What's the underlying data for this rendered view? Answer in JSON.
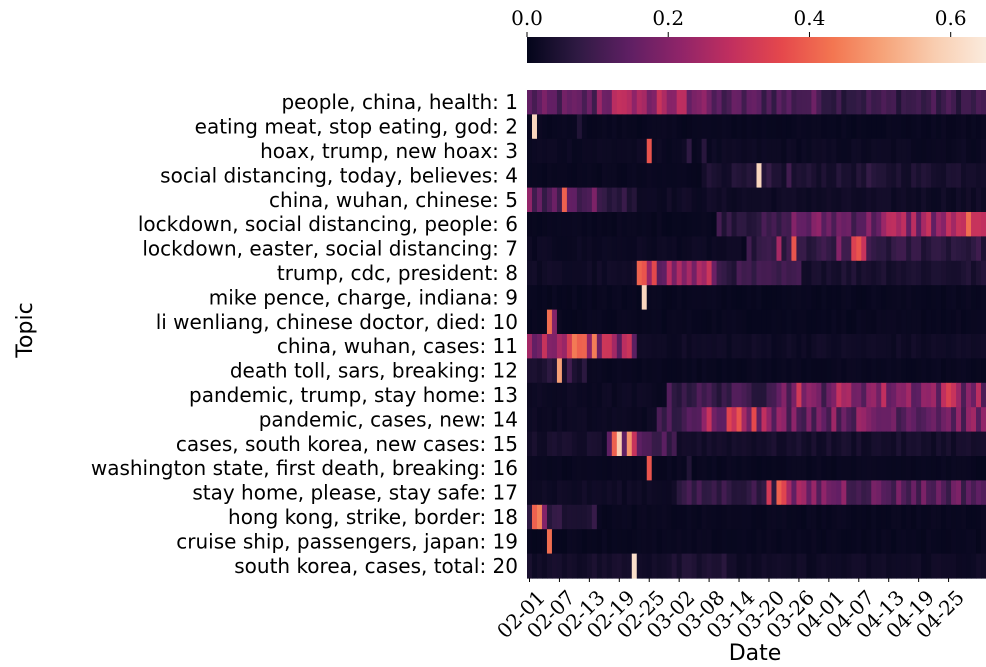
{
  "chart_data": {
    "type": "heatmap",
    "xlabel": "Date",
    "ylabel": "Topic",
    "x_tick_labels": [
      "02-01",
      "02-07",
      "02-13",
      "02-19",
      "02-25",
      "03-02",
      "03-08",
      "03-14",
      "03-20",
      "03-26",
      "04-01",
      "04-07",
      "04-13",
      "04-19",
      "04-25"
    ],
    "colorbar": {
      "ticks": [
        "0.0",
        "0.2",
        "0.4",
        "0.6"
      ],
      "range": [
        0,
        0.65
      ],
      "colormap": "rocket",
      "stops": [
        "#03051a",
        "#2f1a43",
        "#5e1f63",
        "#8f2469",
        "#c12f5f",
        "#e5484c",
        "#f37651",
        "#f6a47a",
        "#f9cdb0",
        "#faebdd"
      ]
    },
    "num_days": 92,
    "first_day_offset": 0,
    "topics": [
      {
        "id": "1",
        "label": "people, china, health: 1",
        "segments": [
          [
            0,
            14,
            0.13
          ],
          [
            14,
            36,
            0.22
          ],
          [
            36,
            60,
            0.12
          ],
          [
            60,
            92,
            0.09
          ]
        ],
        "peaks": [
          [
            20,
            0.27
          ],
          [
            23,
            0.25
          ],
          [
            27,
            0.26
          ],
          [
            31,
            0.28
          ],
          [
            44,
            0.15
          ]
        ]
      },
      {
        "id": "2",
        "label": "eating meat, stop eating, god: 2",
        "segments": [
          [
            0,
            92,
            0.01
          ]
        ],
        "peaks": [
          [
            1,
            0.6
          ],
          [
            10,
            0.05
          ]
        ]
      },
      {
        "id": "3",
        "label": "hoax, trump, new hoax: 3",
        "segments": [
          [
            0,
            92,
            0.015
          ]
        ],
        "peaks": [
          [
            24,
            0.38
          ],
          [
            32,
            0.07
          ],
          [
            35,
            0.06
          ]
        ]
      },
      {
        "id": "4",
        "label": "social distancing, today, believes: 4",
        "segments": [
          [
            0,
            35,
            0.01
          ],
          [
            35,
            92,
            0.04
          ]
        ],
        "peaks": [
          [
            46,
            0.6
          ],
          [
            48,
            0.08
          ],
          [
            52,
            0.1
          ],
          [
            68,
            0.08
          ]
        ]
      },
      {
        "id": "5",
        "label": "china, wuhan, chinese: 5",
        "segments": [
          [
            0,
            6,
            0.12
          ],
          [
            6,
            14,
            0.16
          ],
          [
            14,
            22,
            0.07
          ],
          [
            22,
            92,
            0.02
          ]
        ],
        "peaks": [
          [
            0,
            0.22
          ],
          [
            7,
            0.4
          ],
          [
            8,
            0.15
          ]
        ]
      },
      {
        "id": "6",
        "label": "lockdown, social distancing, people: 6",
        "segments": [
          [
            0,
            38,
            0.01
          ],
          [
            38,
            52,
            0.08
          ],
          [
            52,
            70,
            0.16
          ],
          [
            70,
            92,
            0.22
          ]
        ],
        "peaks": [
          [
            80,
            0.3
          ],
          [
            86,
            0.3
          ],
          [
            88,
            0.42
          ],
          [
            90,
            0.3
          ]
        ]
      },
      {
        "id": "7",
        "label": "lockdown, easter, social distancing: 7",
        "segments": [
          [
            0,
            44,
            0.015
          ],
          [
            44,
            92,
            0.07
          ]
        ],
        "peaks": [
          [
            50,
            0.25
          ],
          [
            53,
            0.38
          ],
          [
            62,
            0.2
          ],
          [
            65,
            0.34
          ],
          [
            66,
            0.38
          ],
          [
            67,
            0.3
          ]
        ]
      },
      {
        "id": "8",
        "label": "trump, cdc, president: 8",
        "segments": [
          [
            0,
            22,
            0.02
          ],
          [
            22,
            26,
            0.3
          ],
          [
            26,
            38,
            0.22
          ],
          [
            38,
            55,
            0.08
          ],
          [
            55,
            92,
            0.04
          ]
        ],
        "peaks": [
          [
            23,
            0.38
          ],
          [
            25,
            0.36
          ]
        ]
      },
      {
        "id": "9",
        "label": "mike pence, charge, indiana: 9",
        "segments": [
          [
            0,
            92,
            0.01
          ]
        ],
        "peaks": [
          [
            23,
            0.6
          ]
        ]
      },
      {
        "id": "10",
        "label": "li wenliang, chinese doctor, died: 10",
        "segments": [
          [
            0,
            92,
            0.01
          ]
        ],
        "peaks": [
          [
            4,
            0.42
          ],
          [
            5,
            0.2
          ]
        ]
      },
      {
        "id": "11",
        "label": "china, wuhan, cases: 11",
        "segments": [
          [
            0,
            8,
            0.18
          ],
          [
            8,
            14,
            0.36
          ],
          [
            14,
            22,
            0.22
          ],
          [
            22,
            92,
            0.02
          ]
        ],
        "peaks": [
          [
            3,
            0.3
          ],
          [
            9,
            0.44
          ],
          [
            10,
            0.4
          ]
        ]
      },
      {
        "id": "12",
        "label": "death toll, sars, breaking: 12",
        "segments": [
          [
            0,
            12,
            0.05
          ],
          [
            12,
            92,
            0.01
          ]
        ],
        "peaks": [
          [
            6,
            0.5
          ],
          [
            8,
            0.1
          ]
        ]
      },
      {
        "id": "13",
        "label": "pandemic, trump, stay home: 13",
        "segments": [
          [
            0,
            28,
            0.015
          ],
          [
            28,
            48,
            0.09
          ],
          [
            48,
            60,
            0.16
          ],
          [
            60,
            92,
            0.21
          ]
        ],
        "peaks": [
          [
            54,
            0.32
          ],
          [
            84,
            0.34
          ],
          [
            85,
            0.3
          ]
        ]
      },
      {
        "id": "14",
        "label": "pandemic, cases, new: 14",
        "segments": [
          [
            0,
            26,
            0.015
          ],
          [
            26,
            35,
            0.1
          ],
          [
            35,
            48,
            0.24
          ],
          [
            48,
            92,
            0.17
          ]
        ],
        "peaks": [
          [
            40,
            0.35
          ],
          [
            42,
            0.38
          ],
          [
            45,
            0.36
          ]
        ]
      },
      {
        "id": "15",
        "label": "cases, south korea, new cases: 15",
        "segments": [
          [
            0,
            16,
            0.03
          ],
          [
            16,
            30,
            0.1
          ],
          [
            30,
            92,
            0.03
          ]
        ],
        "peaks": [
          [
            17,
            0.4
          ],
          [
            18,
            0.58
          ],
          [
            20,
            0.48
          ],
          [
            21,
            0.3
          ]
        ]
      },
      {
        "id": "16",
        "label": "washington state, first death, breaking: 16",
        "segments": [
          [
            0,
            92,
            0.01
          ]
        ],
        "peaks": [
          [
            24,
            0.38
          ],
          [
            32,
            0.05
          ]
        ]
      },
      {
        "id": "17",
        "label": "stay home, please, stay safe: 17",
        "segments": [
          [
            0,
            30,
            0.02
          ],
          [
            30,
            50,
            0.08
          ],
          [
            50,
            64,
            0.18
          ],
          [
            64,
            92,
            0.14
          ]
        ],
        "peaks": [
          [
            48,
            0.32
          ],
          [
            50,
            0.4
          ],
          [
            51,
            0.35
          ]
        ]
      },
      {
        "id": "18",
        "label": "hong kong, strike, border: 18",
        "segments": [
          [
            0,
            4,
            0.05
          ],
          [
            4,
            14,
            0.06
          ],
          [
            14,
            92,
            0.01
          ]
        ],
        "peaks": [
          [
            1,
            0.4
          ],
          [
            2,
            0.45
          ],
          [
            3,
            0.2
          ]
        ]
      },
      {
        "id": "19",
        "label": "cruise ship, passengers, japan: 19",
        "segments": [
          [
            0,
            92,
            0.01
          ]
        ],
        "peaks": [
          [
            4,
            0.42
          ]
        ]
      },
      {
        "id": "20",
        "label": "south korea, cases, total: 20",
        "segments": [
          [
            0,
            28,
            0.03
          ],
          [
            28,
            40,
            0.05
          ],
          [
            40,
            92,
            0.02
          ]
        ],
        "peaks": [
          [
            21,
            0.62
          ]
        ]
      }
    ]
  }
}
